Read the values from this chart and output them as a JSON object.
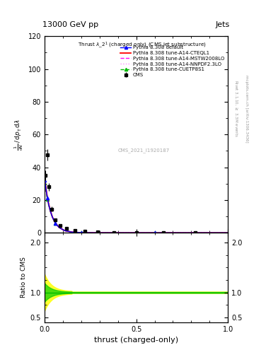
{
  "title_text": "13000 GeV pp",
  "corner_label": "Jets",
  "plot_title": "Thrust $\\lambda\\_2^1$ (charged only) (CMS jet substructure)",
  "xlabel": "thrust (charged-only)",
  "ylabel_lines": [
    "1",
    "mathrm d N / mathrm d p_mathrm{T} mathrm d lambda"
  ],
  "ylabel_ratio": "Ratio to CMS",
  "right_label_top": "Rivet 3.1.10, $\\geq$ 3.3M events",
  "right_label_bottom": "mcplots.cern.ch [arXiv:1306.3436]",
  "cms_label": "CMS_2021_I1920187",
  "ylim_main": [
    0,
    120
  ],
  "ylim_ratio": [
    0.4,
    2.2
  ],
  "xlim": [
    0,
    1
  ],
  "cms_data_x": [
    0.005,
    0.015,
    0.025,
    0.04,
    0.06,
    0.085,
    0.12,
    0.165,
    0.22,
    0.29,
    0.38,
    0.5,
    0.65,
    0.82
  ],
  "cms_data_y": [
    35.0,
    47.5,
    28.0,
    14.5,
    8.0,
    4.5,
    2.5,
    1.5,
    1.0,
    0.5,
    0.3,
    0.1,
    0.05,
    0.02
  ],
  "cms_data_yerr": [
    3.0,
    3.5,
    2.5,
    1.5,
    0.8,
    0.5,
    0.3,
    0.2,
    0.15,
    0.1,
    0.05,
    0.02,
    0.01,
    0.005
  ],
  "color_cms": "#000000",
  "color_default": "#0000ff",
  "color_cteql1": "#ff0000",
  "color_mstw": "#ff00ff",
  "color_nnpdf": "#ff88ff",
  "color_cuetp": "#00bb00",
  "band_yellow": "#ffff00",
  "band_green": "#00cc00",
  "background_color": "#ffffff",
  "legend_entries": [
    "CMS",
    "Pythia 8.308 default",
    "Pythia 8.308 tune-A14-CTEQL1",
    "Pythia 8.308 tune-A14-MSTW2008LO",
    "Pythia 8.308 tune-A14-NNPDF2.3LO",
    "Pythia 8.308 tune-CUETP8S1"
  ]
}
